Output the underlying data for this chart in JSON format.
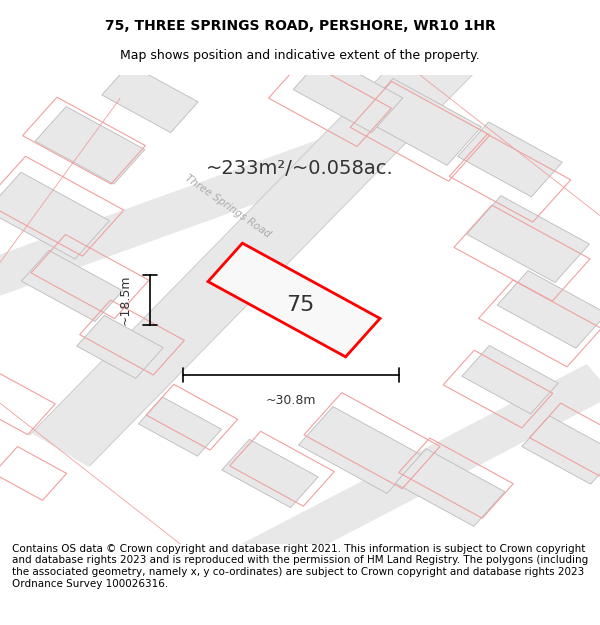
{
  "title": "75, THREE SPRINGS ROAD, PERSHORE, WR10 1HR",
  "subtitle": "Map shows position and indicative extent of the property.",
  "area_text": "~233m²/~0.058ac.",
  "label_number": "75",
  "dim_width": "~30.8m",
  "dim_height": "~18.5m",
  "road_label": "Three Springs Road",
  "footer": "Contains OS data © Crown copyright and database right 2021. This information is subject to Crown copyright and database rights 2023 and is reproduced with the permission of HM Land Registry. The polygons (including the associated geometry, namely x, y co-ordinates) are subject to Crown copyright and database rights 2023 Ordnance Survey 100026316.",
  "bg_color": "#ffffff",
  "map_bg": "#f5f5f5",
  "plot_color": "#ff0000",
  "other_plot_color": "#f0a0a0",
  "road_color": "#e8d0d0",
  "outline_color": "#cccccc",
  "title_fontsize": 10,
  "subtitle_fontsize": 9,
  "footer_fontsize": 7.5
}
